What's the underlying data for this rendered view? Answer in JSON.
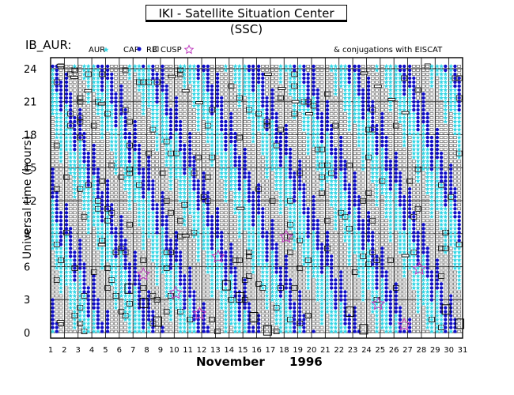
{
  "chart_data": {
    "type": "scatter",
    "title": "IKI - Satellite Situation Center (SSC)",
    "panel_label": "IB_AUR:",
    "legend": [
      {
        "label": "AUR",
        "marker": "star",
        "color": "#33d6e6"
      },
      {
        "label": "CAP",
        "marker": "dot",
        "color": "#1010c8"
      },
      {
        "label": "RB",
        "marker": "square",
        "color": "#666666"
      },
      {
        "label": "CUSP",
        "marker": "star",
        "color": "#c040c0"
      }
    ],
    "note": "& conjugations with EISCAT",
    "ylabel": "Universal time (hours)",
    "xlabel_month": "November",
    "xlabel_year": "1996",
    "ylim": [
      0,
      24.5
    ],
    "xlim": [
      1,
      31
    ],
    "yticks": [
      0,
      3,
      6,
      9,
      12,
      15,
      18,
      21,
      24
    ],
    "ytick_labels": [
      "0",
      "3",
      "6",
      "9",
      "12",
      "15",
      "18",
      "21",
      "24"
    ],
    "xtick_labels": [
      "1",
      "2",
      "3",
      "4",
      "5",
      "6",
      "7",
      "8",
      "9",
      "10",
      "11",
      "12",
      "13",
      "14",
      "15",
      "16",
      "17",
      "18",
      "19",
      "20",
      "21",
      "22",
      "23",
      "24",
      "25",
      "26",
      "27",
      "28",
      "29",
      "30",
      "31"
    ],
    "orbit_offsets": [
      0.15,
      0.45,
      0.75
    ],
    "eiscat_conjugations": [
      {
        "day": 7.75,
        "hour": 5.3
      },
      {
        "day": 10.1,
        "hour": 3.6
      },
      {
        "day": 11.85,
        "hour": 1.7
      },
      {
        "day": 13.2,
        "hour": 6.9
      },
      {
        "day": 18.15,
        "hour": 8.7
      },
      {
        "day": 24.85,
        "hour": 2.6
      },
      {
        "day": 26.75,
        "hour": 0.7
      },
      {
        "day": 27.85,
        "hour": 5.8
      }
    ],
    "interval_boxes": [
      {
        "day": 6.7,
        "hour": 4.0
      },
      {
        "day": 7.8,
        "hour": 2.7
      },
      {
        "day": 8.8,
        "hour": 1.0
      },
      {
        "day": 13.8,
        "hour": 4.3
      },
      {
        "day": 14.8,
        "hour": 3.2
      },
      {
        "day": 15.8,
        "hour": 1.4
      },
      {
        "day": 16.8,
        "hour": 0.2
      },
      {
        "day": 22.8,
        "hour": 1.9
      },
      {
        "day": 23.8,
        "hour": 0.3
      },
      {
        "day": 29.8,
        "hour": 2.1
      },
      {
        "day": 30.8,
        "hour": 0.8
      }
    ],
    "intervals": [
      {
        "day": 1.7,
        "hour": 24.3
      },
      {
        "day": 1.7,
        "hour": 1.0
      },
      {
        "day": 2.7,
        "hour": 23.2
      },
      {
        "day": 3.7,
        "hour": 22.0
      },
      {
        "day": 4.7,
        "hour": 20.8
      },
      {
        "day": 4.7,
        "hour": 8.0
      },
      {
        "day": 9.8,
        "hour": 23.3
      },
      {
        "day": 10.8,
        "hour": 22.0
      },
      {
        "day": 11.8,
        "hour": 20.9
      },
      {
        "day": 10.8,
        "hour": 8.8
      },
      {
        "day": 14.8,
        "hour": 11.3
      },
      {
        "day": 16.8,
        "hour": 23.5
      },
      {
        "day": 17.8,
        "hour": 22.2
      },
      {
        "day": 18.8,
        "hour": 21.0
      },
      {
        "day": 19.8,
        "hour": 19.9
      },
      {
        "day": 23.8,
        "hour": 23.6
      },
      {
        "day": 24.8,
        "hour": 22.4
      },
      {
        "day": 25.8,
        "hour": 21.2
      },
      {
        "day": 26.8,
        "hour": 20.0
      },
      {
        "day": 26.8,
        "hour": 7.0
      }
    ]
  }
}
